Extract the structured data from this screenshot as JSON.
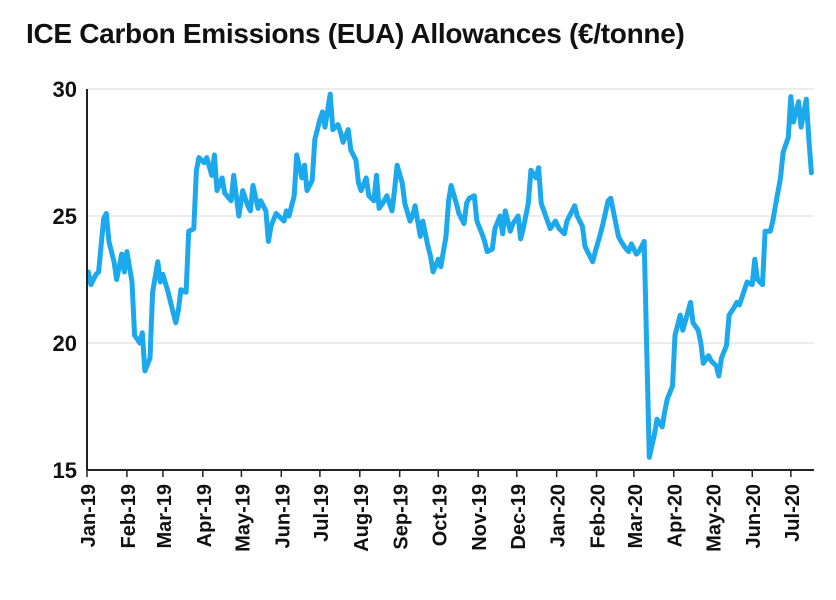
{
  "chart_data": {
    "type": "line",
    "title": "ICE Carbon Emissions (EUA) Allowances (€/tonne)",
    "xlabel": "",
    "ylabel": "",
    "ylim": [
      15,
      30
    ],
    "yticks": [
      15,
      20,
      25,
      30
    ],
    "grid": "horizontal",
    "legend": "none",
    "color": "#1ba8ec",
    "x_tick_labels": [
      "Jan-19",
      "Feb-19",
      "Mar-19",
      "Apr-19",
      "May-19",
      "Jun-19",
      "Jul-19",
      "Aug-19",
      "Sep-19",
      "Oct-19",
      "Nov-19",
      "Dec-19",
      "Jan-20",
      "Feb-20",
      "Mar-20",
      "Apr-20",
      "May-20",
      "Jun-20",
      "Jul-20"
    ],
    "series": [
      {
        "x": [
          "2019-01-02",
          "2019-01-04",
          "2019-01-08",
          "2019-01-10",
          "2019-01-14",
          "2019-01-16",
          "2019-01-18",
          "2019-01-22",
          "2019-01-24",
          "2019-01-28",
          "2019-01-30",
          "2019-02-01",
          "2019-02-05",
          "2019-02-07",
          "2019-02-11",
          "2019-02-13",
          "2019-02-15",
          "2019-02-19",
          "2019-02-21",
          "2019-02-25",
          "2019-02-27",
          "2019-03-01",
          "2019-03-05",
          "2019-03-07",
          "2019-03-11",
          "2019-03-13",
          "2019-03-15",
          "2019-03-19",
          "2019-03-21",
          "2019-03-25",
          "2019-03-27",
          "2019-03-29",
          "2019-04-02",
          "2019-04-04",
          "2019-04-08",
          "2019-04-10",
          "2019-04-12",
          "2019-04-16",
          "2019-04-18",
          "2019-04-23",
          "2019-04-25",
          "2019-04-29",
          "2019-05-02",
          "2019-05-06",
          "2019-05-08",
          "2019-05-10",
          "2019-05-14",
          "2019-05-16",
          "2019-05-20",
          "2019-05-22",
          "2019-05-24",
          "2019-05-28",
          "2019-05-30",
          "2019-06-03",
          "2019-06-05",
          "2019-06-07",
          "2019-06-11",
          "2019-06-13",
          "2019-06-17",
          "2019-06-19",
          "2019-06-21",
          "2019-06-25",
          "2019-06-27",
          "2019-07-01",
          "2019-07-03",
          "2019-07-05",
          "2019-07-09",
          "2019-07-11",
          "2019-07-15",
          "2019-07-17",
          "2019-07-19",
          "2019-07-23",
          "2019-07-25",
          "2019-07-29",
          "2019-07-31",
          "2019-08-02",
          "2019-08-06",
          "2019-08-08",
          "2019-08-12",
          "2019-08-14",
          "2019-08-16",
          "2019-08-20",
          "2019-08-22",
          "2019-08-26",
          "2019-08-28",
          "2019-08-30",
          "2019-09-03",
          "2019-09-05",
          "2019-09-09",
          "2019-09-11",
          "2019-09-13",
          "2019-09-17",
          "2019-09-19",
          "2019-09-23",
          "2019-09-25",
          "2019-09-27",
          "2019-10-01",
          "2019-10-03",
          "2019-10-07",
          "2019-10-09",
          "2019-10-11",
          "2019-10-15",
          "2019-10-17",
          "2019-10-21",
          "2019-10-23",
          "2019-10-25",
          "2019-10-29",
          "2019-10-31",
          "2019-11-04",
          "2019-11-06",
          "2019-11-08",
          "2019-11-12",
          "2019-11-14",
          "2019-11-18",
          "2019-11-20",
          "2019-11-22",
          "2019-11-26",
          "2019-11-28",
          "2019-12-02",
          "2019-12-04",
          "2019-12-06",
          "2019-12-10",
          "2019-12-12",
          "2019-12-16",
          "2019-12-18",
          "2019-12-20",
          "2019-12-27",
          "2019-12-31",
          "2020-01-03",
          "2020-01-07",
          "2020-01-09",
          "2020-01-13",
          "2020-01-15",
          "2020-01-17",
          "2020-01-21",
          "2020-01-23",
          "2020-01-27",
          "2020-01-29",
          "2020-01-31",
          "2020-02-04",
          "2020-02-06",
          "2020-02-10",
          "2020-02-12",
          "2020-02-14",
          "2020-02-18",
          "2020-02-20",
          "2020-02-24",
          "2020-02-26",
          "2020-02-28",
          "2020-03-03",
          "2020-03-05",
          "2020-03-09",
          "2020-03-11",
          "2020-03-13",
          "2020-03-17",
          "2020-03-19",
          "2020-03-23",
          "2020-03-25",
          "2020-03-27",
          "2020-03-31",
          "2020-04-02",
          "2020-04-06",
          "2020-04-08",
          "2020-04-14",
          "2020-04-16",
          "2020-04-20",
          "2020-04-22",
          "2020-04-24",
          "2020-04-28",
          "2020-04-30",
          "2020-05-04",
          "2020-05-06",
          "2020-05-08",
          "2020-05-12",
          "2020-05-14",
          "2020-05-18",
          "2020-05-20",
          "2020-05-22",
          "2020-05-26",
          "2020-05-28",
          "2020-06-01",
          "2020-06-03",
          "2020-06-05",
          "2020-06-09",
          "2020-06-11",
          "2020-06-15",
          "2020-06-17",
          "2020-06-19",
          "2020-06-23",
          "2020-06-25",
          "2020-06-29",
          "2020-07-01",
          "2020-07-03",
          "2020-07-07",
          "2020-07-09",
          "2020-07-13",
          "2020-07-15",
          "2020-07-17"
        ],
        "values": [
          22.8,
          22.3,
          22.7,
          22.8,
          24.9,
          25.1,
          24.0,
          23.2,
          22.5,
          23.5,
          22.8,
          23.6,
          22.4,
          20.3,
          20.0,
          20.4,
          18.9,
          19.4,
          22.0,
          23.2,
          22.4,
          22.7,
          22.0,
          21.6,
          20.8,
          21.3,
          22.1,
          22.0,
          24.4,
          24.5,
          26.8,
          27.3,
          27.1,
          27.3,
          26.6,
          27.4,
          26.0,
          26.5,
          25.9,
          25.6,
          26.6,
          25.0,
          26.0,
          25.4,
          25.2,
          26.2,
          25.3,
          25.6,
          25.2,
          24.0,
          24.6,
          25.1,
          25.0,
          24.8,
          25.2,
          25.0,
          25.8,
          27.4,
          26.5,
          27.0,
          26.0,
          26.4,
          28.0,
          28.8,
          29.1,
          28.5,
          29.8,
          28.4,
          28.6,
          28.3,
          27.9,
          28.4,
          27.6,
          27.2,
          26.3,
          26.0,
          26.5,
          25.8,
          25.6,
          26.6,
          25.3,
          25.6,
          25.8,
          25.2,
          26.0,
          27.0,
          26.3,
          25.5,
          24.8,
          25.0,
          25.4,
          24.2,
          24.8,
          23.8,
          23.4,
          22.8,
          23.3,
          23.0,
          24.2,
          25.6,
          26.2,
          25.5,
          25.1,
          24.7,
          25.5,
          25.7,
          25.8,
          24.8,
          24.3,
          24.0,
          23.6,
          23.7,
          24.5,
          25.0,
          24.3,
          25.2,
          24.4,
          24.7,
          25.0,
          24.1,
          24.5,
          25.5,
          26.8,
          26.5,
          26.9,
          25.5,
          24.5,
          24.8,
          24.5,
          24.3,
          24.8,
          25.2,
          25.4,
          25.0,
          24.6,
          23.8,
          23.4,
          23.2,
          23.6,
          24.3,
          24.7,
          25.6,
          25.7,
          25.2,
          24.2,
          24.0,
          23.7,
          23.6,
          23.9,
          23.5,
          23.6,
          24.0,
          19.8,
          15.5,
          16.4,
          17.0,
          16.7,
          17.3,
          17.8,
          18.3,
          20.3,
          21.1,
          20.5,
          21.6,
          20.8,
          20.5,
          20.0,
          19.2,
          19.5,
          19.3,
          19.1,
          18.7,
          19.4,
          19.9,
          21.1,
          21.4,
          21.6,
          21.5,
          22.1,
          22.4,
          22.3,
          23.3,
          22.5,
          22.3,
          24.4,
          24.4,
          24.8,
          25.4,
          26.5,
          27.5,
          28.1,
          29.7,
          28.7,
          29.5,
          28.5,
          29.6,
          28.0,
          26.7
        ]
      }
    ]
  }
}
